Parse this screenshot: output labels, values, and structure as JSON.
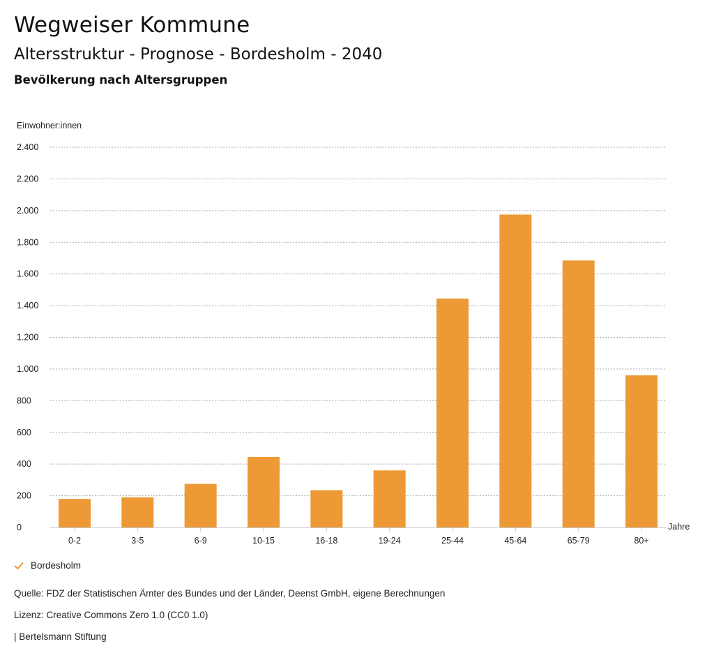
{
  "header": {
    "app_title": "Wegweiser Kommune",
    "subtitle": "Altersstruktur - Prognose - Bordesholm - 2040",
    "section_title": "Bevölkerung nach Altersgruppen"
  },
  "legend": {
    "label": "Bordesholm",
    "icon": "check-icon",
    "color": "#ED9935"
  },
  "footer": {
    "source": "Quelle: FDZ der Statistischen Ämter des Bundes und der Länder, Deenst GmbH, eigene Berechnungen",
    "license": "Lizenz: Creative Commons Zero 1.0 (CC0 1.0)",
    "publisher": "| Bertelsmann Stiftung"
  },
  "chart_data": {
    "type": "bar",
    "ylabel": "Einwohner:innen",
    "xlabel": "Jahre",
    "categories": [
      "0-2",
      "3-5",
      "6-9",
      "10-15",
      "16-18",
      "19-24",
      "25-44",
      "45-64",
      "65-79",
      "80+"
    ],
    "series": [
      {
        "name": "Bordesholm",
        "color": "#ED9935",
        "values": [
          180,
          190,
          275,
          445,
          235,
          360,
          1445,
          1975,
          1685,
          960
        ]
      }
    ],
    "ylim": [
      0,
      2400
    ],
    "yticks": [
      0,
      200,
      400,
      600,
      800,
      1000,
      1200,
      1400,
      1600,
      1800,
      2000,
      2200,
      2400
    ],
    "ytick_labels": [
      "0",
      "200",
      "400",
      "600",
      "800",
      "1.000",
      "1.200",
      "1.400",
      "1.600",
      "1.800",
      "2.000",
      "2.200",
      "2.400"
    ],
    "grid": true,
    "grid_color": "#aaaaaa",
    "legend_position": "bottom-left"
  }
}
